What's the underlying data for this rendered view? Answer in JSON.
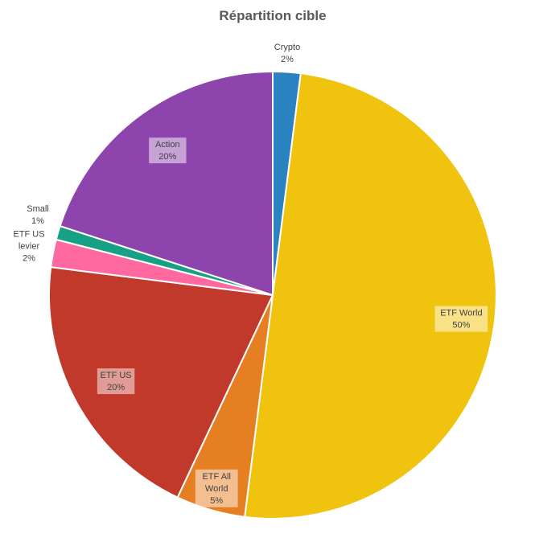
{
  "chart_data": {
    "type": "pie",
    "title": "Répartition cible",
    "slices": [
      {
        "label": "Crypto",
        "value": 2,
        "display": "2%",
        "color": "#2A83C0"
      },
      {
        "label": "ETF World",
        "value": 50,
        "display": "50%",
        "color": "#F0C30F"
      },
      {
        "label": "ETF All World",
        "value": 5,
        "display": "5%",
        "color": "#E67E22"
      },
      {
        "label": "ETF US",
        "value": 20,
        "display": "20%",
        "color": "#C0392B"
      },
      {
        "label": "ETF US levier",
        "value": 2,
        "display": "2%",
        "color": "#FF69A0"
      },
      {
        "label": "Small",
        "value": 1,
        "display": "1%",
        "color": "#16A085"
      },
      {
        "label": "Action",
        "value": 20,
        "display": "20%",
        "color": "#8E44AD"
      }
    ]
  }
}
